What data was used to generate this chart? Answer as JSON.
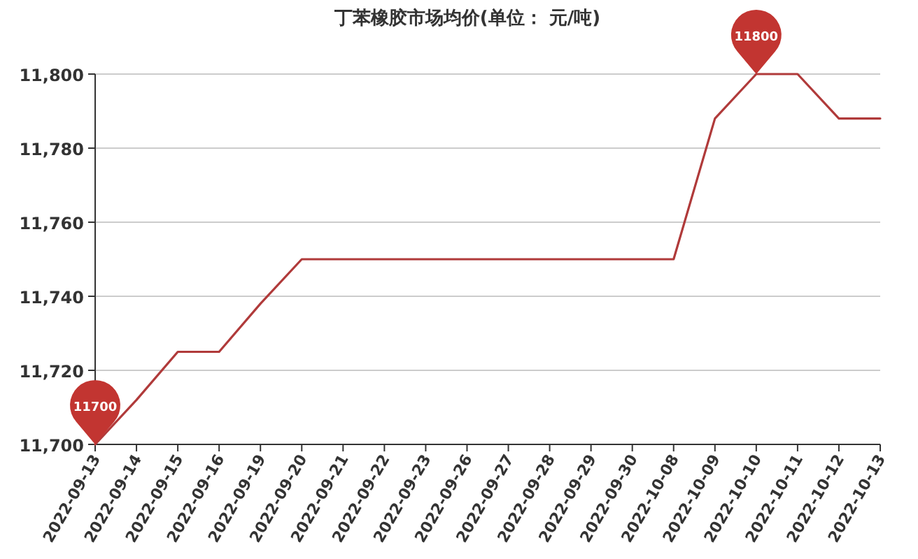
{
  "chart_data": {
    "type": "line",
    "title": "丁苯橡胶市场均价(单位：  元/吨)",
    "categories": [
      "2022-09-13",
      "2022-09-14",
      "2022-09-15",
      "2022-09-16",
      "2022-09-19",
      "2022-09-20",
      "2022-09-21",
      "2022-09-22",
      "2022-09-23",
      "2022-09-26",
      "2022-09-27",
      "2022-09-28",
      "2022-09-29",
      "2022-09-30",
      "2022-10-08",
      "2022-10-09",
      "2022-10-10",
      "2022-10-11",
      "2022-10-12",
      "2022-10-13"
    ],
    "values": [
      11700,
      11712,
      11725,
      11725,
      11738,
      11750,
      11750,
      11750,
      11750,
      11750,
      11750,
      11750,
      11750,
      11750,
      11750,
      11788,
      11800,
      11800,
      11788,
      11788
    ],
    "color": "#b03a3a",
    "ylim": [
      11700,
      11800
    ],
    "yticks": [
      {
        "value": 11700,
        "label": "11,700"
      },
      {
        "value": 11720,
        "label": "11,720"
      },
      {
        "value": 11740,
        "label": "11,740"
      },
      {
        "value": 11760,
        "label": "11,760"
      },
      {
        "value": 11780,
        "label": "11,780"
      },
      {
        "value": 11800,
        "label": "11,800"
      }
    ],
    "grid": "y",
    "marker": "none",
    "line_style": "solid",
    "annotations": [
      {
        "text": "11800",
        "x": "2022-10-10",
        "y": 11800
      },
      {
        "text": "11700",
        "x": "2022-09-13",
        "y": 11700
      }
    ]
  }
}
